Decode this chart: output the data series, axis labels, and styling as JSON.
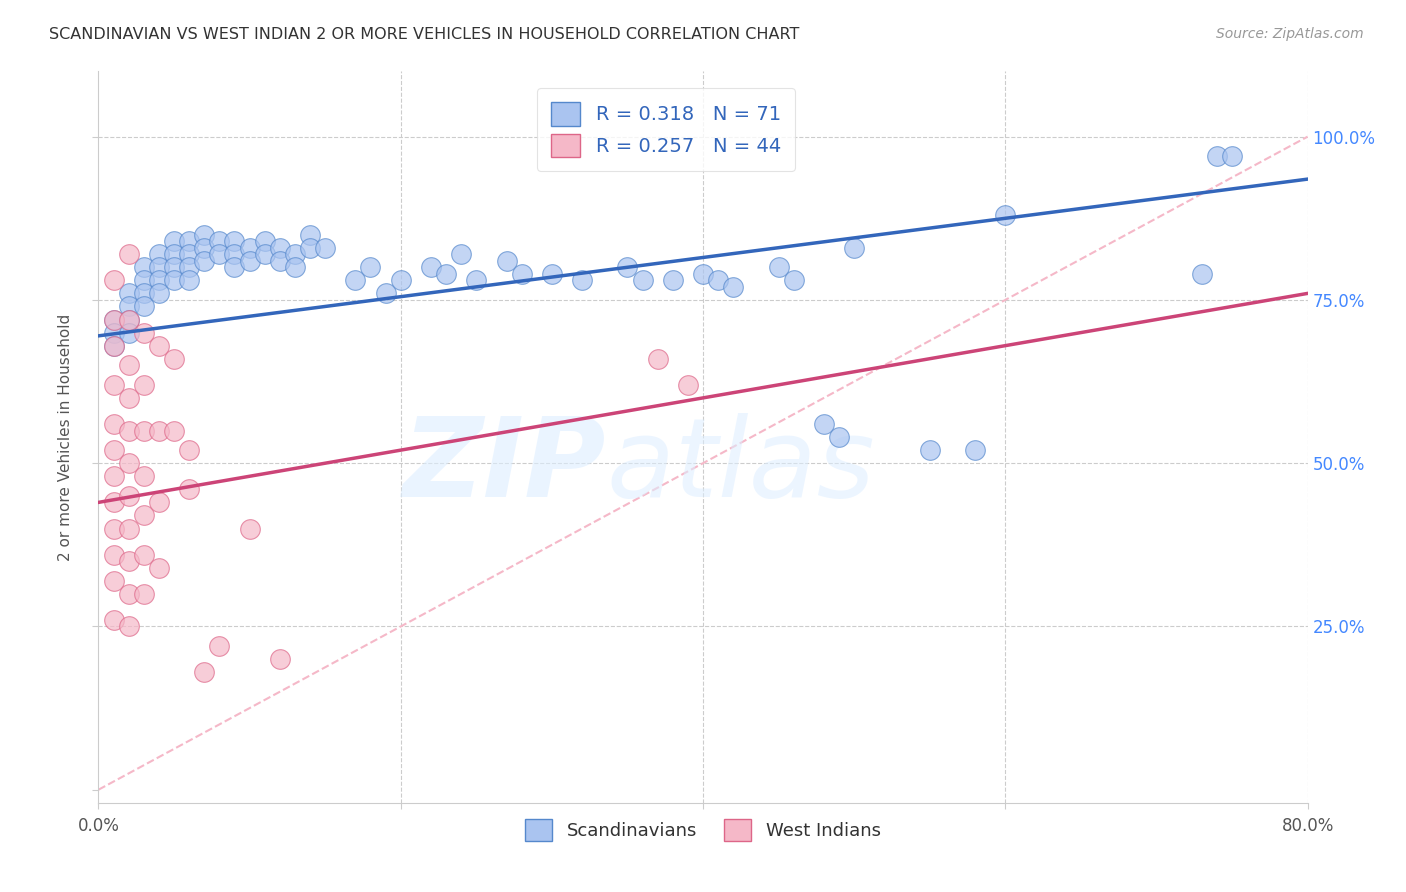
{
  "title": "SCANDINAVIAN VS WEST INDIAN 2 OR MORE VEHICLES IN HOUSEHOLD CORRELATION CHART",
  "source": "Source: ZipAtlas.com",
  "ylabel": "2 or more Vehicles in Household",
  "xlim": [
    0.0,
    0.8
  ],
  "ylim": [
    -0.02,
    1.1
  ],
  "blue_line_x": [
    0.0,
    0.8
  ],
  "blue_line_y": [
    0.695,
    0.935
  ],
  "pink_line_x": [
    0.0,
    0.8
  ],
  "pink_line_y": [
    0.44,
    0.76
  ],
  "ref_line_x": [
    0.0,
    0.8
  ],
  "ref_line_y": [
    0.0,
    1.0
  ],
  "scatter_blue": [
    [
      0.01,
      0.72
    ],
    [
      0.01,
      0.7
    ],
    [
      0.01,
      0.68
    ],
    [
      0.02,
      0.76
    ],
    [
      0.02,
      0.74
    ],
    [
      0.02,
      0.72
    ],
    [
      0.02,
      0.7
    ],
    [
      0.03,
      0.8
    ],
    [
      0.03,
      0.78
    ],
    [
      0.03,
      0.76
    ],
    [
      0.03,
      0.74
    ],
    [
      0.04,
      0.82
    ],
    [
      0.04,
      0.8
    ],
    [
      0.04,
      0.78
    ],
    [
      0.04,
      0.76
    ],
    [
      0.05,
      0.84
    ],
    [
      0.05,
      0.82
    ],
    [
      0.05,
      0.8
    ],
    [
      0.05,
      0.78
    ],
    [
      0.06,
      0.84
    ],
    [
      0.06,
      0.82
    ],
    [
      0.06,
      0.8
    ],
    [
      0.06,
      0.78
    ],
    [
      0.07,
      0.85
    ],
    [
      0.07,
      0.83
    ],
    [
      0.07,
      0.81
    ],
    [
      0.08,
      0.84
    ],
    [
      0.08,
      0.82
    ],
    [
      0.09,
      0.84
    ],
    [
      0.09,
      0.82
    ],
    [
      0.09,
      0.8
    ],
    [
      0.1,
      0.83
    ],
    [
      0.1,
      0.81
    ],
    [
      0.11,
      0.84
    ],
    [
      0.11,
      0.82
    ],
    [
      0.12,
      0.83
    ],
    [
      0.12,
      0.81
    ],
    [
      0.13,
      0.82
    ],
    [
      0.13,
      0.8
    ],
    [
      0.14,
      0.85
    ],
    [
      0.14,
      0.83
    ],
    [
      0.15,
      0.83
    ],
    [
      0.17,
      0.78
    ],
    [
      0.18,
      0.8
    ],
    [
      0.19,
      0.76
    ],
    [
      0.2,
      0.78
    ],
    [
      0.22,
      0.8
    ],
    [
      0.23,
      0.79
    ],
    [
      0.24,
      0.82
    ],
    [
      0.25,
      0.78
    ],
    [
      0.27,
      0.81
    ],
    [
      0.28,
      0.79
    ],
    [
      0.3,
      0.79
    ],
    [
      0.32,
      0.78
    ],
    [
      0.35,
      0.8
    ],
    [
      0.36,
      0.78
    ],
    [
      0.38,
      0.78
    ],
    [
      0.4,
      0.79
    ],
    [
      0.41,
      0.78
    ],
    [
      0.42,
      0.77
    ],
    [
      0.45,
      0.8
    ],
    [
      0.46,
      0.78
    ],
    [
      0.48,
      0.56
    ],
    [
      0.49,
      0.54
    ],
    [
      0.5,
      0.83
    ],
    [
      0.55,
      0.52
    ],
    [
      0.58,
      0.52
    ],
    [
      0.6,
      0.88
    ],
    [
      0.73,
      0.79
    ],
    [
      0.74,
      0.97
    ],
    [
      0.75,
      0.97
    ]
  ],
  "scatter_pink": [
    [
      0.01,
      0.78
    ],
    [
      0.01,
      0.72
    ],
    [
      0.01,
      0.68
    ],
    [
      0.01,
      0.62
    ],
    [
      0.01,
      0.56
    ],
    [
      0.01,
      0.52
    ],
    [
      0.01,
      0.48
    ],
    [
      0.01,
      0.44
    ],
    [
      0.01,
      0.4
    ],
    [
      0.01,
      0.36
    ],
    [
      0.01,
      0.32
    ],
    [
      0.01,
      0.26
    ],
    [
      0.02,
      0.82
    ],
    [
      0.02,
      0.72
    ],
    [
      0.02,
      0.65
    ],
    [
      0.02,
      0.6
    ],
    [
      0.02,
      0.55
    ],
    [
      0.02,
      0.5
    ],
    [
      0.02,
      0.45
    ],
    [
      0.02,
      0.4
    ],
    [
      0.02,
      0.35
    ],
    [
      0.02,
      0.3
    ],
    [
      0.02,
      0.25
    ],
    [
      0.03,
      0.7
    ],
    [
      0.03,
      0.62
    ],
    [
      0.03,
      0.55
    ],
    [
      0.03,
      0.48
    ],
    [
      0.03,
      0.42
    ],
    [
      0.03,
      0.36
    ],
    [
      0.03,
      0.3
    ],
    [
      0.04,
      0.68
    ],
    [
      0.04,
      0.55
    ],
    [
      0.04,
      0.44
    ],
    [
      0.04,
      0.34
    ],
    [
      0.05,
      0.66
    ],
    [
      0.05,
      0.55
    ],
    [
      0.06,
      0.52
    ],
    [
      0.06,
      0.46
    ],
    [
      0.07,
      0.18
    ],
    [
      0.08,
      0.22
    ],
    [
      0.1,
      0.4
    ],
    [
      0.12,
      0.2
    ],
    [
      0.37,
      0.66
    ],
    [
      0.39,
      0.62
    ]
  ],
  "blue_color": "#aac4f0",
  "pink_color": "#f5b8c8",
  "blue_edge_color": "#5588cc",
  "pink_edge_color": "#dd6688",
  "blue_line_color": "#3366bb",
  "pink_line_color": "#cc4477",
  "ref_line_color": "#f5b8c8",
  "grid_color": "#cccccc",
  "right_tick_color": "#4488ff",
  "title_color": "#333333",
  "source_color": "#999999"
}
